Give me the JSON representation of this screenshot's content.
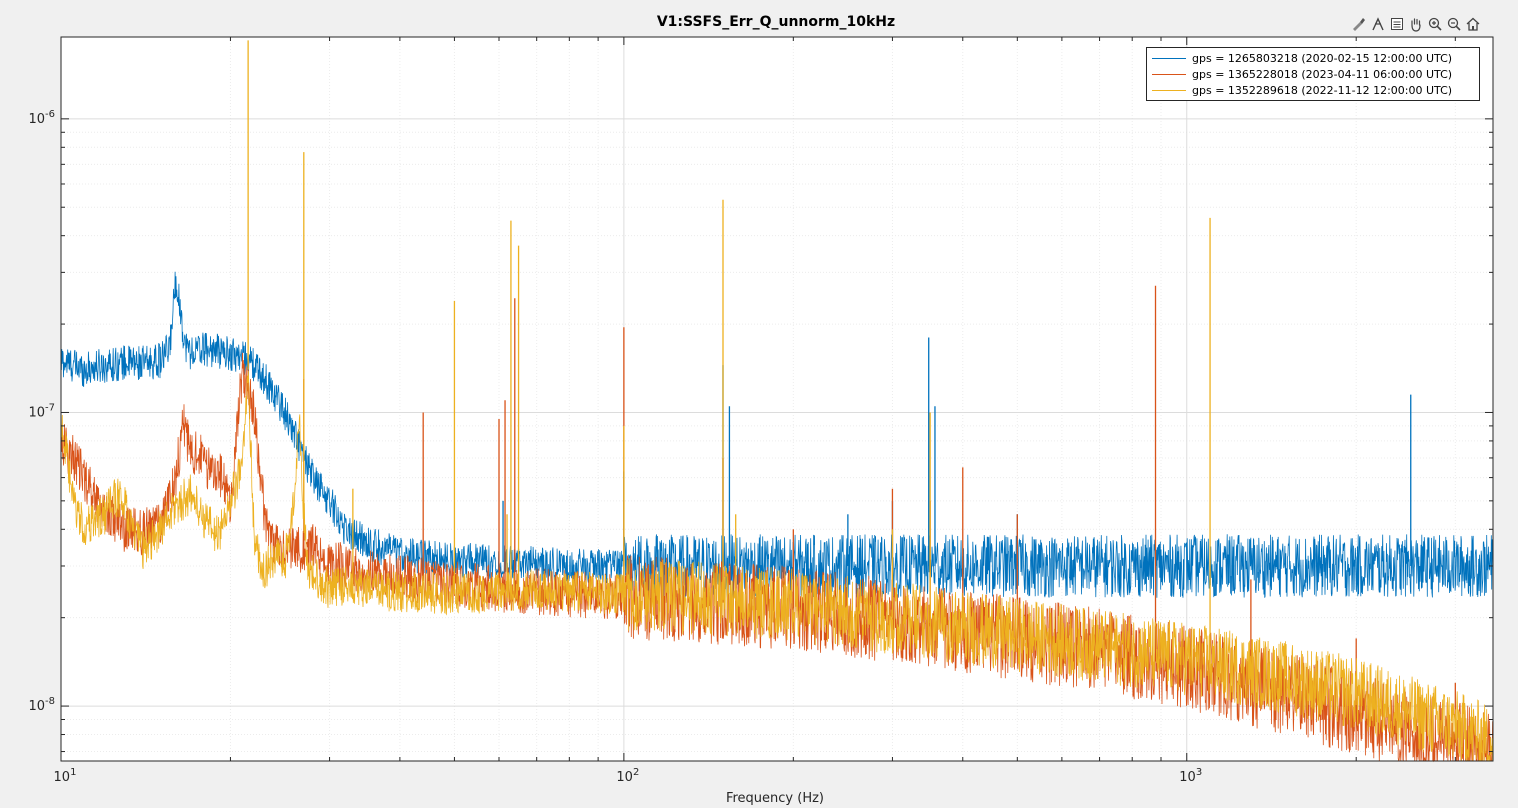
{
  "toolbar": {
    "icons": [
      "brush-icon",
      "data-tips-icon",
      "legend-icon",
      "pan-icon",
      "zoom-in-icon",
      "zoom-out-icon",
      "home-icon"
    ]
  },
  "chart_data": {
    "type": "line",
    "title": "V1:SSFS_Err_Q_unnorm_10kHz",
    "xlabel": "Frequency (Hz)",
    "ylabel": "",
    "xscale": "log",
    "yscale": "log",
    "xlim": [
      10,
      3500
    ],
    "ylim": [
      6.5e-09,
      1.9e-06
    ],
    "grid": "on (major and minor)",
    "legend_position": "top-right",
    "x_tick_labels": [
      {
        "value": 10,
        "base": "10",
        "exp": "1"
      },
      {
        "value": 100,
        "base": "10",
        "exp": "2"
      },
      {
        "value": 1000,
        "base": "10",
        "exp": "3"
      }
    ],
    "y_tick_labels": [
      {
        "value": 1e-08,
        "base": "10",
        "exp": "-8"
      },
      {
        "value": 1e-07,
        "base": "10",
        "exp": "-7"
      },
      {
        "value": 1e-06,
        "base": "10",
        "exp": "-6"
      }
    ],
    "series": [
      {
        "name": "gps = 1265803218 (2020-02-15 12:00:00 UTC)",
        "color": "#0072BD",
        "noise": 0.06,
        "x": [
          10,
          11,
          12,
          13,
          14,
          15,
          15.6,
          16,
          16.6,
          17,
          18,
          19,
          20,
          21,
          22,
          23,
          24,
          25,
          26,
          27,
          28,
          30,
          32,
          35,
          38,
          40,
          42,
          45,
          50,
          60,
          70,
          80,
          100,
          150,
          200,
          300,
          500,
          1000,
          2000,
          3500
        ],
        "y": [
          1.5e-07,
          1.4e-07,
          1.45e-07,
          1.48e-07,
          1.47e-07,
          1.5e-07,
          1.65e-07,
          2.9e-07,
          1.7e-07,
          1.6e-07,
          1.65e-07,
          1.62e-07,
          1.58e-07,
          1.55e-07,
          1.45e-07,
          1.3e-07,
          1.15e-07,
          1e-07,
          8.5e-08,
          7e-08,
          6e-08,
          5e-08,
          4e-08,
          3.6e-08,
          3.4e-08,
          3.3e-08,
          3.25e-08,
          3.2e-08,
          3.15e-08,
          3.1e-08,
          3.05e-08,
          3e-08,
          3e-08,
          3e-08,
          3e-08,
          3e-08,
          3e-08,
          3e-08,
          3e-08,
          3e-08
        ],
        "peaks": [
          [
            61,
            5e-08
          ],
          [
            100,
            6.3e-08
          ],
          [
            150,
            1.45e-07
          ],
          [
            154,
            1.05e-07
          ],
          [
            250,
            4.5e-08
          ],
          [
            300,
            5e-08
          ],
          [
            348,
            1.8e-07
          ],
          [
            357,
            1.05e-07
          ],
          [
            500,
            4.5e-08
          ],
          [
            2500,
            1.15e-07
          ]
        ]
      },
      {
        "name": "gps = 1365228018 (2023-04-11 06:00:00 UTC)",
        "color": "#D95319",
        "noise": 0.08,
        "x": [
          10,
          10.5,
          11,
          11.5,
          12,
          13,
          14,
          15,
          16,
          16.5,
          17,
          17.5,
          18,
          19,
          20,
          21,
          22,
          23,
          24,
          25,
          26,
          27,
          28,
          29,
          30,
          31,
          33,
          35,
          40,
          45,
          50,
          60,
          70,
          100,
          150,
          200,
          300,
          400,
          500,
          700,
          1000,
          1500,
          2000,
          2500,
          3000,
          3500
        ],
        "y": [
          8e-08,
          7e-08,
          6e-08,
          5.2e-08,
          4.6e-08,
          4e-08,
          3.9e-08,
          4.2e-08,
          6e-08,
          9.5e-08,
          7e-08,
          7.5e-08,
          6.5e-08,
          6.5e-08,
          4.8e-08,
          1.4e-07,
          1e-07,
          4.5e-08,
          3.5e-08,
          3.3e-08,
          3.6e-08,
          3.3e-08,
          3.5e-08,
          3.2e-08,
          3e-08,
          3.05e-08,
          2.9e-08,
          2.85e-08,
          2.75e-08,
          2.65e-08,
          2.6e-08,
          2.5e-08,
          2.45e-08,
          2.35e-08,
          2.25e-08,
          2.15e-08,
          1.95e-08,
          1.8e-08,
          1.7e-08,
          1.55e-08,
          1.35e-08,
          1.1e-08,
          9.5e-09,
          8.2e-09,
          7.5e-09,
          6.9e-09
        ],
        "peaks": [
          [
            21.5,
            1.5e-07
          ],
          [
            27,
            1.3e-07
          ],
          [
            44,
            1e-07
          ],
          [
            60,
            9.5e-08
          ],
          [
            61.5,
            1.1e-07
          ],
          [
            64,
            2.45e-07
          ],
          [
            100,
            1.95e-07
          ],
          [
            150,
            7e-08
          ],
          [
            200,
            4e-08
          ],
          [
            300,
            5.5e-08
          ],
          [
            350,
            5e-08
          ],
          [
            400,
            6.5e-08
          ],
          [
            500,
            4.5e-08
          ],
          [
            880,
            2.7e-07
          ],
          [
            1300,
            2.7e-08
          ],
          [
            2000,
            1.7e-08
          ],
          [
            3000,
            1.2e-08
          ]
        ]
      },
      {
        "name": "gps = 1352289618 (2022-11-12 12:00:00 UTC)",
        "color": "#EDB120",
        "noise": 0.07,
        "x": [
          10,
          10.5,
          11,
          11.5,
          12,
          12.5,
          13,
          13.5,
          14,
          15,
          16,
          17,
          18,
          19,
          20,
          21,
          21.5,
          22,
          22.5,
          23,
          24,
          25,
          26,
          26.5,
          27,
          27.5,
          28,
          30,
          32,
          35,
          40,
          50,
          60,
          70,
          100,
          150,
          200,
          300,
          400,
          500,
          700,
          1000,
          1500,
          2000,
          2500,
          3000,
          3500
        ],
        "y": [
          9.5e-08,
          5e-08,
          4e-08,
          4.3e-08,
          4.5e-08,
          5.2e-08,
          4.8e-08,
          3.8e-08,
          3.4e-08,
          4e-08,
          4.8e-08,
          5.3e-08,
          4.3e-08,
          3.8e-08,
          5e-08,
          6.5e-08,
          1.4e-07,
          4e-08,
          3.1e-08,
          2.9e-08,
          3.2e-08,
          3.1e-08,
          5e-08,
          1e-07,
          4.5e-08,
          2.9e-08,
          2.8e-08,
          2.5e-08,
          2.6e-08,
          2.5e-08,
          2.45e-08,
          2.4e-08,
          2.45e-08,
          2.5e-08,
          2.4e-08,
          2.3e-08,
          2.2e-08,
          2e-08,
          1.85e-08,
          1.75e-08,
          1.6e-08,
          1.45e-08,
          1.25e-08,
          1.1e-08,
          9.5e-09,
          8.5e-09,
          7.5e-09
        ],
        "peaks": [
          [
            21.5,
            1.85e-06
          ],
          [
            27,
            7.7e-07
          ],
          [
            33,
            5.5e-08
          ],
          [
            50,
            2.4e-07
          ],
          [
            62,
            4.5e-08
          ],
          [
            63,
            4.5e-07
          ],
          [
            65,
            3.7e-07
          ],
          [
            100,
            9e-08
          ],
          [
            150,
            5.3e-07
          ],
          [
            158,
            4.5e-08
          ],
          [
            300,
            4e-08
          ],
          [
            350,
            1e-07
          ],
          [
            1100,
            4.6e-07
          ]
        ]
      }
    ]
  }
}
